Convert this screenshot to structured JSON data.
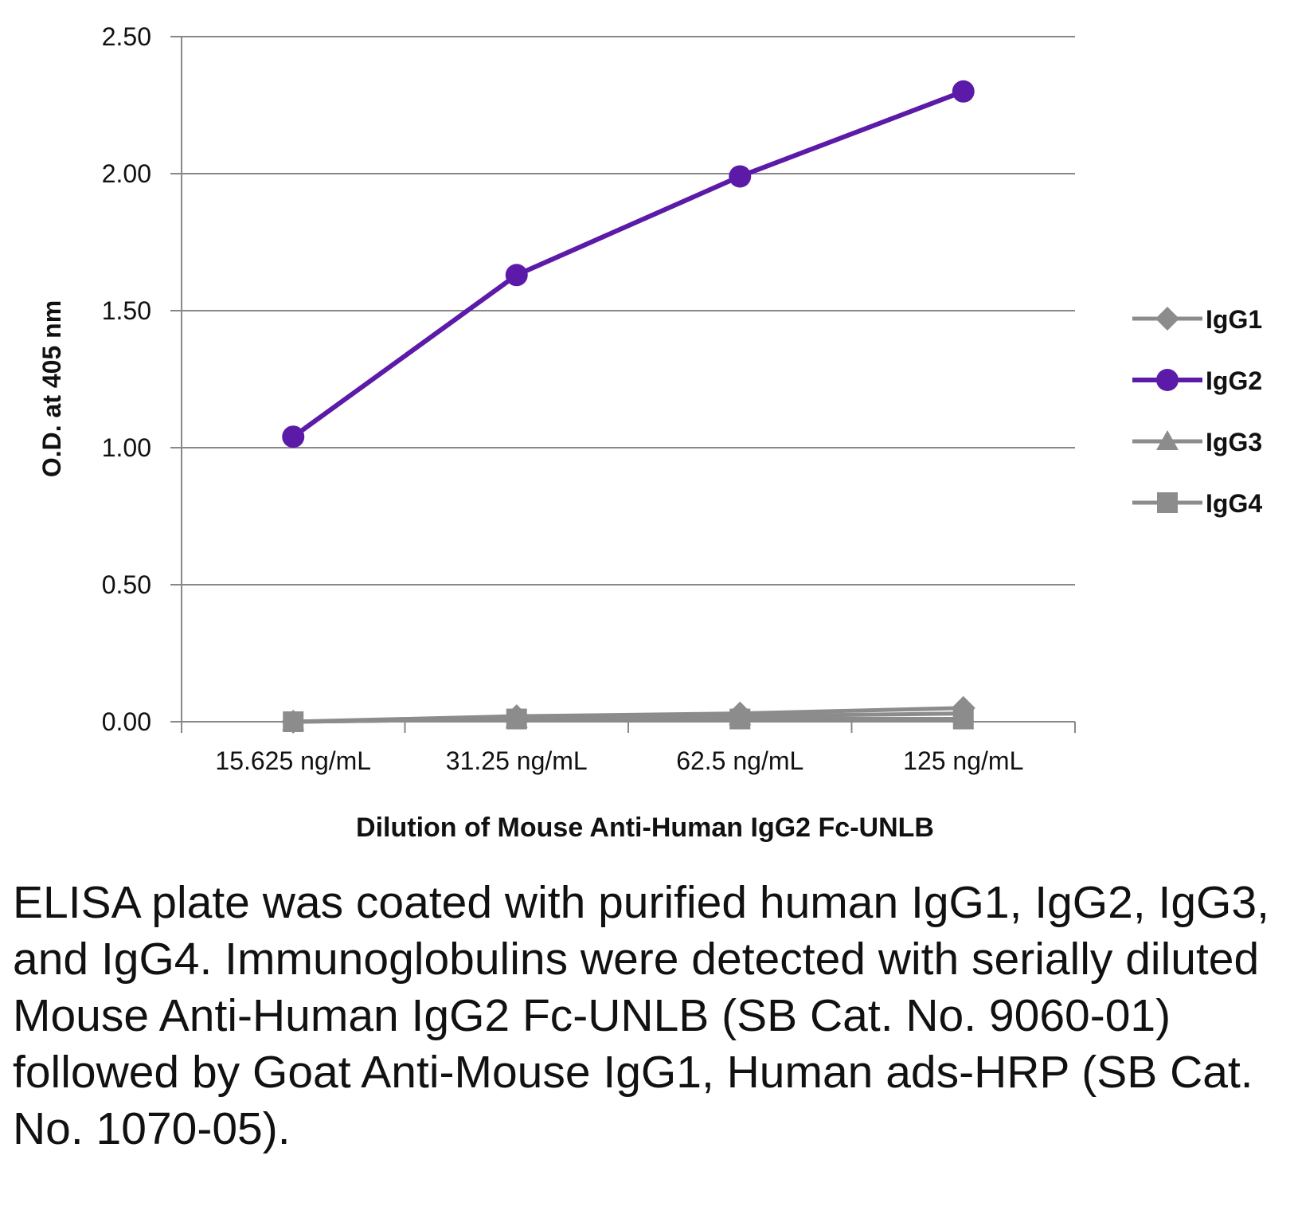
{
  "chart_data": {
    "type": "line",
    "categories": [
      "15.625 ng/mL",
      "31.25 ng/mL",
      "62.5 ng/mL",
      "125 ng/mL"
    ],
    "series": [
      {
        "name": "IgG1",
        "values": [
          0.0,
          0.02,
          0.03,
          0.05
        ],
        "color": "#8c8c8c",
        "marker": "diamond"
      },
      {
        "name": "IgG2",
        "values": [
          1.04,
          1.63,
          1.99,
          2.3
        ],
        "color": "#5b1aa8",
        "marker": "circle"
      },
      {
        "name": "IgG3",
        "values": [
          0.0,
          0.01,
          0.02,
          0.03
        ],
        "color": "#8c8c8c",
        "marker": "triangle"
      },
      {
        "name": "IgG4",
        "values": [
          0.0,
          0.01,
          0.01,
          0.01
        ],
        "color": "#8c8c8c",
        "marker": "square"
      }
    ],
    "yticks": [
      "0.00",
      "0.50",
      "1.00",
      "1.50",
      "2.00",
      "2.50"
    ],
    "ylim": [
      0,
      2.5
    ],
    "xlabel": "Dilution of Mouse Anti-Human IgG2 Fc-UNLB",
    "ylabel": "O.D. at 405 nm",
    "grid": true,
    "legend_position": "right"
  },
  "caption": "ELISA plate was coated with purified human IgG1, IgG2, IgG3, and IgG4.  Immunoglobulins were detected with serially diluted Mouse Anti-Human IgG2 Fc-UNLB (SB Cat. No. 9060-01) followed by Goat Anti-Mouse IgG1, Human ads-HRP (SB Cat. No. 1070-05).",
  "colors": {
    "gridline": "#888888",
    "axis": "#888888",
    "accent": "#5b1aa8",
    "muted": "#8c8c8c"
  }
}
